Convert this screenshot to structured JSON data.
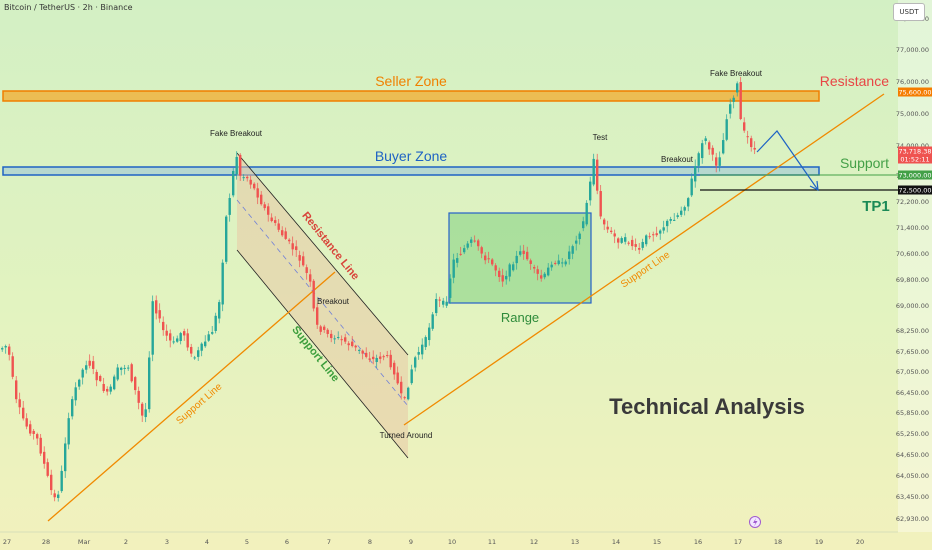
{
  "header": {
    "symbol": "Bitcoin / TetherUS · 2h · Binance",
    "currency_button": "USDT"
  },
  "chart_data": {
    "type": "candlestick",
    "title": "Technical Analysis",
    "price_labels": [
      "77,000.00",
      "76,000.00",
      "75,000.00",
      "74,000.00",
      "73,000.00",
      "72,200.00",
      "71,400.00",
      "70,600.00",
      "69,800.00",
      "69,000.00",
      "68,250.00",
      "67,650.00",
      "67,050.00",
      "66,450.00",
      "65,850.00",
      "65,250.00",
      "64,650.00",
      "64,050.00",
      "63,450.00",
      "62,930.00"
    ],
    "price_tick_top": "78,000.00",
    "time_labels": [
      "27",
      "28",
      "Mar",
      "2",
      "3",
      "4",
      "5",
      "6",
      "7",
      "8",
      "9",
      "10",
      "11",
      "12",
      "13",
      "14",
      "15",
      "16",
      "17",
      "18",
      "19",
      "20"
    ],
    "badges": [
      {
        "value": "75,600.00",
        "color": "#f57c00",
        "text_color": "#ffffff"
      },
      {
        "value": "73,718.38",
        "color": "#ef5350",
        "text_color": "#ffffff",
        "sub": "01:52:11"
      },
      {
        "value": "73,000.00",
        "color": "#43a047",
        "text_color": "#ffffff"
      },
      {
        "value": "72,500.00",
        "color": "#111111",
        "text_color": "#ffffff"
      }
    ],
    "zones": [
      {
        "label": "Seller Zone",
        "color": "#f57c00"
      },
      {
        "label": "Buyer Zone",
        "color": "#1e63c4"
      },
      {
        "label": "Range",
        "color": "#2e8b3a"
      }
    ],
    "lines": [
      {
        "label": "Support Line",
        "color": "#f08a00"
      },
      {
        "label": "Support Line",
        "color": "#f08a00"
      },
      {
        "label": "Resistance Line",
        "color": "#d84339"
      },
      {
        "label": "Support Line",
        "color": "#3c9e3c"
      }
    ],
    "levels": [
      {
        "label": "Resistance",
        "color": "#e84545"
      },
      {
        "label": "Support",
        "color": "#43a047"
      },
      {
        "label": "TP1",
        "color": "#1b8a56"
      }
    ],
    "annotations": [
      "Fake Breakout",
      "Breakout",
      "Turned Around",
      "Test",
      "Breakout",
      "Fake Breakout"
    ],
    "colors": {
      "up": "#26a69a",
      "down": "#ef5350"
    }
  }
}
